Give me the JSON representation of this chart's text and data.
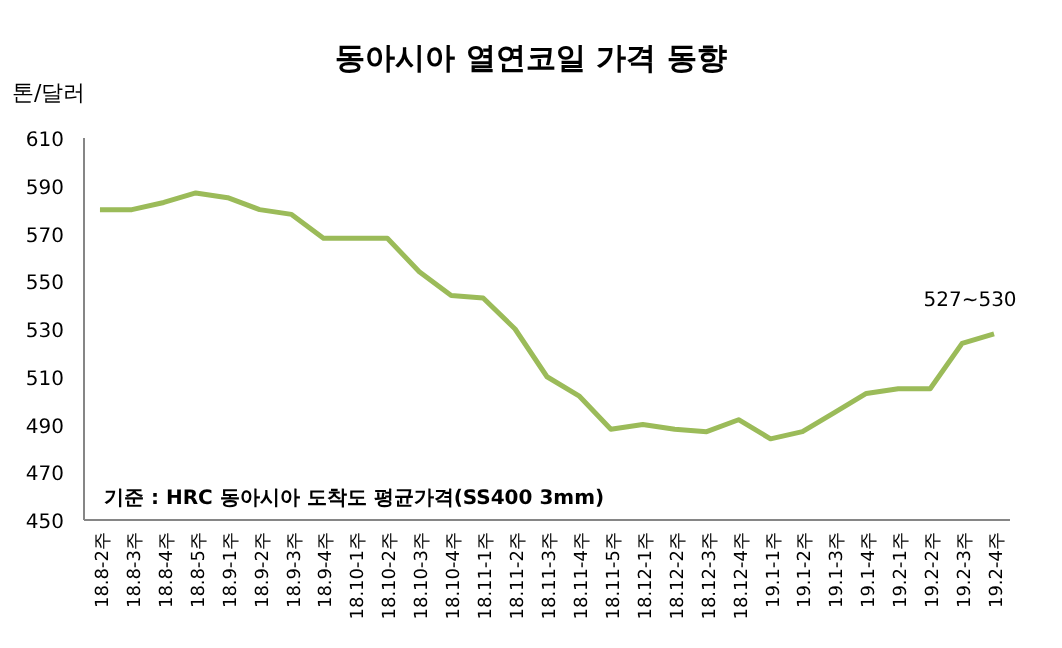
{
  "chart_data": {
    "type": "line",
    "title": "동아시아 열연코일 가격 동향",
    "ylabel": "톤/달러",
    "categories": [
      "18.8-2주",
      "18.8-3주",
      "18.8-4주",
      "18.8-5주",
      "18.9-1주",
      "18.9-2주",
      "18.9-3주",
      "18.9-4주",
      "18.10-1주",
      "18.10-2주",
      "18.10-3주",
      "18.10-4주",
      "18.11-1주",
      "18.11-2주",
      "18.11-3주",
      "18.11-4주",
      "18.11-5주",
      "18.12-1주",
      "18.12-2주",
      "18.12-3주",
      "18.12-4주",
      "19.1-1주",
      "19.1-2주",
      "19.1-3주",
      "19.1-4주",
      "19.2-1주",
      "19.2-2주",
      "19.2-3주",
      "19.2-4주"
    ],
    "series": [
      {
        "color": "#9bbb59",
        "values": [
          580,
          580,
          583,
          587,
          585,
          580,
          578,
          568,
          568,
          568,
          554,
          544,
          543,
          530,
          510,
          502,
          488,
          490,
          488,
          487,
          492,
          484,
          487,
          495,
          503,
          505,
          505,
          524,
          528
        ]
      }
    ],
    "ylim": [
      450,
      610
    ],
    "yticks": [
      450,
      470,
      490,
      510,
      530,
      550,
      570,
      590,
      610
    ],
    "marker": "none",
    "line_style": "solid",
    "annotations": [
      {
        "text": "527~530",
        "x": "19.2-4주",
        "y": 528
      },
      "기준 : HRC 동아시아 도착도 평균가격(SS400 3mm)"
    ]
  }
}
